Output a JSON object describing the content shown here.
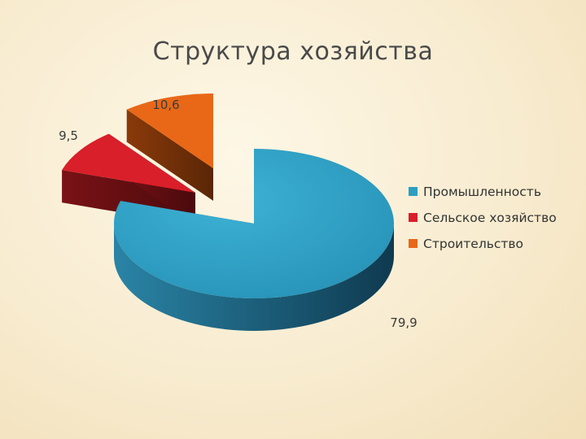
{
  "title": "Структура хозяйства",
  "chart_data": {
    "type": "pie",
    "title": "Структура хозяйства",
    "categories": [
      "Промышленность",
      "Сельское хозяйство",
      "Строительство"
    ],
    "values": [
      79.9,
      9.5,
      10.6
    ],
    "value_labels": [
      "79,9",
      "9,5",
      "10,6"
    ],
    "colors": [
      "#2c9fc1",
      "#d91f2a",
      "#e86818"
    ],
    "legend_position": "right",
    "style": "3d-exploded"
  }
}
